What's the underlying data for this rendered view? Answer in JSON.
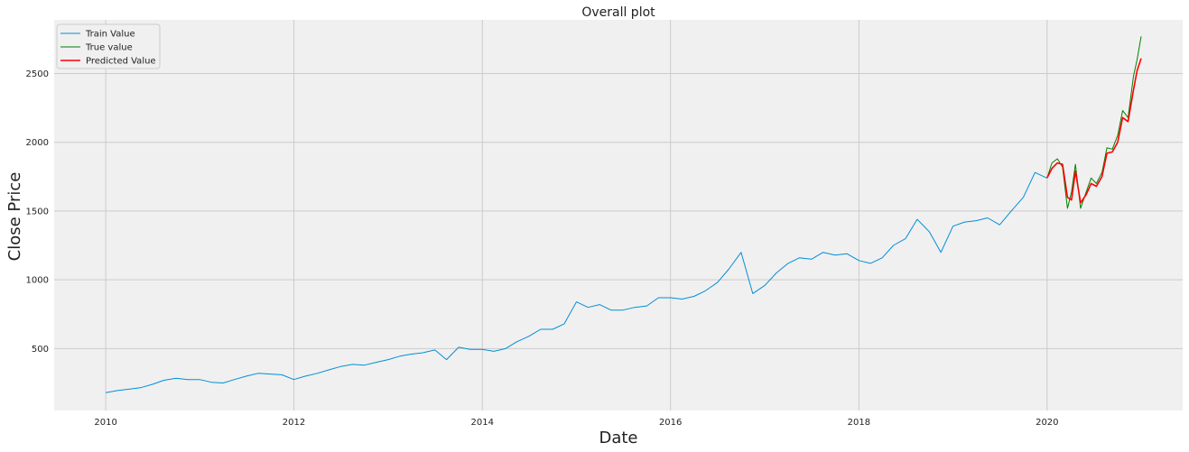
{
  "chart_data": {
    "type": "line",
    "title": "Overall plot",
    "xlabel": "Date",
    "ylabel": "Close Price",
    "xlim": [
      "2009-06-15",
      "2021-06-10"
    ],
    "ylim": [
      50,
      2890
    ],
    "x_ticks": [
      "2010",
      "2012",
      "2014",
      "2016",
      "2018",
      "2020"
    ],
    "y_ticks": [
      500,
      1000,
      1500,
      2000,
      2500
    ],
    "grid": true,
    "legend_position": "top-left",
    "colors": {
      "background": "#f0f0f0",
      "grid": "#cbcbcb",
      "train": "#008fd5",
      "true": "#008000",
      "predicted": "#ff0000"
    },
    "series": [
      {
        "name": "Train Value",
        "color": "#008fd5",
        "x": [
          "2010-01-01",
          "2010-02-15",
          "2010-04-01",
          "2010-05-15",
          "2010-07-01",
          "2010-08-15",
          "2010-10-01",
          "2010-11-15",
          "2011-01-01",
          "2011-02-15",
          "2011-04-01",
          "2011-05-15",
          "2011-07-01",
          "2011-08-15",
          "2011-10-01",
          "2011-11-15",
          "2012-01-01",
          "2012-02-15",
          "2012-04-01",
          "2012-05-15",
          "2012-07-01",
          "2012-08-15",
          "2012-10-01",
          "2012-11-15",
          "2013-01-01",
          "2013-02-15",
          "2013-04-01",
          "2013-05-15",
          "2013-07-01",
          "2013-08-15",
          "2013-10-01",
          "2013-11-15",
          "2014-01-01",
          "2014-02-15",
          "2014-04-01",
          "2014-05-15",
          "2014-07-01",
          "2014-08-15",
          "2014-10-01",
          "2014-11-15",
          "2015-01-01",
          "2015-02-15",
          "2015-04-01",
          "2015-05-15",
          "2015-07-01",
          "2015-08-15",
          "2015-10-01",
          "2015-11-15",
          "2016-01-01",
          "2016-02-15",
          "2016-04-01",
          "2016-05-15",
          "2016-07-01",
          "2016-08-15",
          "2016-10-01",
          "2016-11-15",
          "2017-01-01",
          "2017-02-15",
          "2017-04-01",
          "2017-05-15",
          "2017-07-01",
          "2017-08-15",
          "2017-10-01",
          "2017-11-15",
          "2018-01-01",
          "2018-02-15",
          "2018-04-01",
          "2018-05-15",
          "2018-07-01",
          "2018-08-15",
          "2018-10-01",
          "2018-11-15",
          "2019-01-01",
          "2019-02-15",
          "2019-04-01",
          "2019-05-15",
          "2019-07-01",
          "2019-08-15",
          "2019-10-01",
          "2019-11-15",
          "2019-12-31"
        ],
        "values": [
          180,
          195,
          205,
          215,
          240,
          270,
          285,
          275,
          275,
          255,
          250,
          275,
          300,
          320,
          315,
          310,
          275,
          300,
          320,
          345,
          370,
          385,
          380,
          400,
          420,
          445,
          460,
          470,
          490,
          420,
          510,
          495,
          495,
          480,
          500,
          550,
          590,
          640,
          640,
          680,
          840,
          800,
          820,
          780,
          780,
          800,
          810,
          870,
          870,
          860,
          880,
          920,
          980,
          1080,
          1200,
          900,
          960,
          1050,
          1120,
          1160,
          1150,
          1200,
          1180,
          1190,
          1140,
          1120,
          1160,
          1250,
          1300,
          1440,
          1350,
          1200,
          1390,
          1420,
          1430,
          1450,
          1400,
          1500,
          1600,
          1780,
          1740
        ]
      },
      {
        "name": "True value",
        "color": "#008000",
        "x": [
          "2020-01-01",
          "2020-01-20",
          "2020-02-10",
          "2020-03-01",
          "2020-03-20",
          "2020-04-05",
          "2020-04-20",
          "2020-05-10",
          "2020-06-01",
          "2020-06-20",
          "2020-07-10",
          "2020-08-01",
          "2020-08-20",
          "2020-09-10",
          "2020-10-01",
          "2020-10-20",
          "2020-11-10",
          "2020-12-01",
          "2020-12-15",
          "2020-12-31"
        ],
        "values": [
          1740,
          1850,
          1880,
          1820,
          1520,
          1640,
          1840,
          1520,
          1640,
          1740,
          1700,
          1780,
          1960,
          1950,
          2050,
          2230,
          2180,
          2480,
          2600,
          2770
        ]
      },
      {
        "name": "Predicted Value",
        "color": "#ff0000",
        "x": [
          "2020-01-01",
          "2020-01-20",
          "2020-02-10",
          "2020-03-01",
          "2020-03-20",
          "2020-04-05",
          "2020-04-20",
          "2020-05-10",
          "2020-06-01",
          "2020-06-20",
          "2020-07-10",
          "2020-08-01",
          "2020-08-20",
          "2020-09-10",
          "2020-10-01",
          "2020-10-20",
          "2020-11-10",
          "2020-12-01",
          "2020-12-15",
          "2020-12-31"
        ],
        "values": [
          1740,
          1810,
          1850,
          1840,
          1600,
          1580,
          1790,
          1560,
          1620,
          1700,
          1680,
          1750,
          1920,
          1930,
          2000,
          2180,
          2150,
          2380,
          2520,
          2610
        ]
      }
    ]
  }
}
